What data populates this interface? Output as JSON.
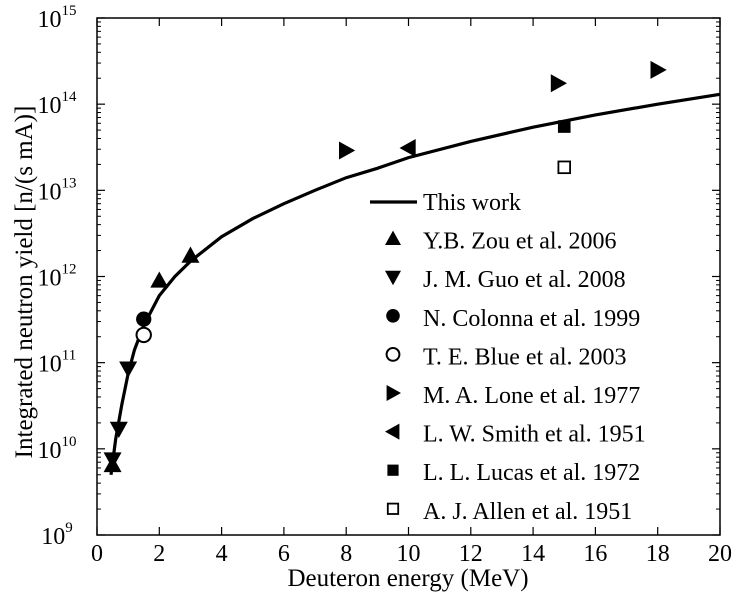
{
  "chart_data": {
    "type": "scatter",
    "title": "",
    "xlabel": "Deuteron energy (MeV)",
    "ylabel": "Integrated neutron yield [n/(s mA)]",
    "xlim": [
      0,
      20
    ],
    "ylim": [
      1000000000.0,
      1000000000000000.0
    ],
    "yscale": "log",
    "grid": false,
    "legend_position": "lower-right (inside)",
    "x_ticks": [
      "0",
      "2",
      "4",
      "6",
      "8",
      "10",
      "12",
      "14",
      "16",
      "18",
      "20"
    ],
    "y_ticks": [
      {
        "base": "10",
        "exp": "9"
      },
      {
        "base": "10",
        "exp": "10"
      },
      {
        "base": "10",
        "exp": "11"
      },
      {
        "base": "10",
        "exp": "12"
      },
      {
        "base": "10",
        "exp": "13"
      },
      {
        "base": "10",
        "exp": "14"
      },
      {
        "base": "10",
        "exp": "15"
      }
    ],
    "series": [
      {
        "name": "This work",
        "marker": "line",
        "points": [
          [
            0.45,
            5000000000.0
          ],
          [
            0.6,
            13000000000.0
          ],
          [
            0.8,
            33000000000.0
          ],
          [
            1.0,
            75000000000.0
          ],
          [
            1.2,
            140000000000.0
          ],
          [
            1.5,
            270000000000.0
          ],
          [
            2.0,
            600000000000.0
          ],
          [
            2.5,
            1000000000000.0
          ],
          [
            3.0,
            1500000000000.0
          ],
          [
            4.0,
            2900000000000.0
          ],
          [
            5.0,
            4700000000000.0
          ],
          [
            6.0,
            7000000000000.0
          ],
          [
            7.0,
            10000000000000.0
          ],
          [
            8.0,
            14000000000000.0
          ],
          [
            9.0,
            18000000000000.0
          ],
          [
            10.0,
            24000000000000.0
          ],
          [
            12.0,
            37000000000000.0
          ],
          [
            14.0,
            54000000000000.0
          ],
          [
            16.0,
            75000000000000.0
          ],
          [
            18.0,
            100000000000000.0
          ],
          [
            20.0,
            130000000000000.0
          ]
        ]
      },
      {
        "name": "Y.B. Zou et al. 2006",
        "marker": "triangle-up",
        "points": [
          [
            0.5,
            6500000000.0
          ],
          [
            2.0,
            900000000000.0
          ],
          [
            3.0,
            1750000000000.0
          ]
        ]
      },
      {
        "name": "J. M. Guo et al. 2008",
        "marker": "triangle-down",
        "points": [
          [
            0.5,
            7500000000.0
          ],
          [
            0.7,
            17000000000.0
          ],
          [
            1.0,
            85000000000.0
          ]
        ]
      },
      {
        "name": "N. Colonna et al. 1999",
        "marker": "circle-filled",
        "points": [
          [
            1.5,
            320000000000.0
          ]
        ]
      },
      {
        "name": "T. E. Blue et al. 2003",
        "marker": "circle-open",
        "points": [
          [
            1.5,
            210000000000.0
          ]
        ]
      },
      {
        "name": "M. A. Lone et al. 1977",
        "marker": "triangle-right",
        "points": [
          [
            8.0,
            29000000000000.0
          ],
          [
            14.8,
            175000000000000.0
          ],
          [
            18.0,
            250000000000000.0
          ]
        ]
      },
      {
        "name": "L. W. Smith et al. 1951",
        "marker": "triangle-left",
        "points": [
          [
            10.0,
            31000000000000.0
          ]
        ]
      },
      {
        "name": "L. L. Lucas et al. 1972",
        "marker": "square-filled",
        "points": [
          [
            15.0,
            55000000000000.0
          ]
        ]
      },
      {
        "name": "A. J. Allen et al. 1951",
        "marker": "square-open",
        "points": [
          [
            15.0,
            18500000000000.0
          ]
        ]
      }
    ]
  }
}
